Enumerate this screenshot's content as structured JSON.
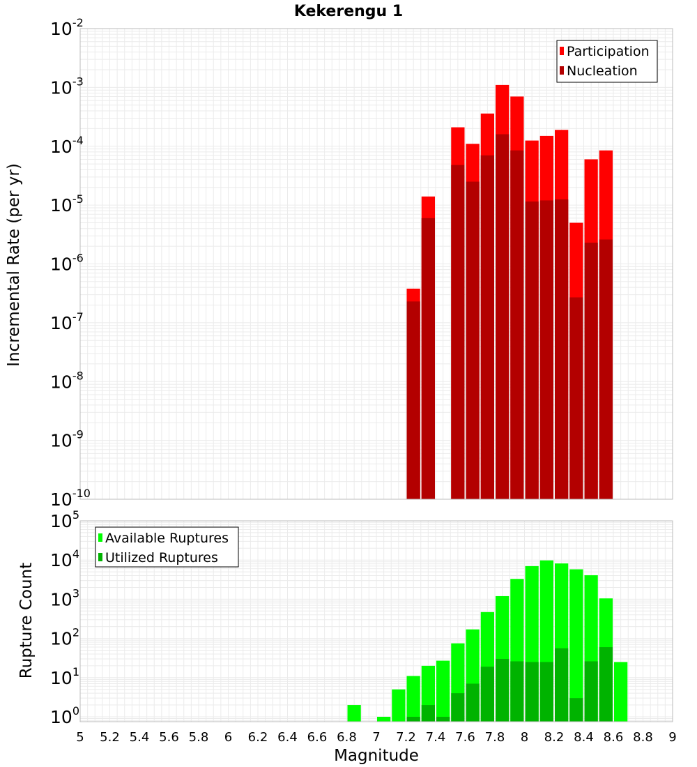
{
  "title": "Kekerengu 1",
  "x_axis": {
    "label": "Magnitude",
    "range": [
      5,
      9
    ],
    "ticks": [
      "5",
      "5.2",
      "5.4",
      "5.6",
      "5.8",
      "6",
      "6.2",
      "6.4",
      "6.6",
      "6.8",
      "7",
      "7.2",
      "7.4",
      "7.6",
      "7.8",
      "8",
      "8.2",
      "8.4",
      "8.6",
      "8.8",
      "9"
    ]
  },
  "colors": {
    "participation": "#ff0000",
    "nucleation": "#b30000",
    "available": "#00ff00",
    "utilized": "#00b300",
    "grid": "#ebebeb",
    "frame": "#bbbbbb"
  },
  "chart_data": [
    {
      "type": "bar",
      "panel": "top",
      "ylabel": "Incremental Rate (per yr)",
      "yscale": "log",
      "ylim": [
        1e-10,
        0.01
      ],
      "y_tick_exponents": [
        -2,
        -3,
        -4,
        -5,
        -6,
        -7,
        -8,
        -9,
        -10
      ],
      "grid": true,
      "legend_position": "top-right",
      "bin_width": 0.1,
      "x": [
        7.25,
        7.35,
        7.55,
        7.65,
        7.75,
        7.85,
        7.95,
        8.05,
        8.15,
        8.25,
        8.35,
        8.45,
        8.55
      ],
      "series": [
        {
          "name": "Participation",
          "values": [
            3.8e-07,
            1.4e-05,
            0.00021,
            0.00011,
            0.00036,
            0.0011,
            0.0007,
            0.000125,
            0.00015,
            0.00019,
            5e-06,
            6e-05,
            8.5e-05
          ]
        },
        {
          "name": "Nucleation",
          "values": [
            2.3e-07,
            6e-06,
            4.8e-05,
            2.5e-05,
            7e-05,
            0.00016,
            8.5e-05,
            1.15e-05,
            1.2e-05,
            1.25e-05,
            2.7e-07,
            2.3e-06,
            2.6e-06
          ]
        }
      ]
    },
    {
      "type": "bar",
      "panel": "bottom",
      "ylabel": "Rupture Count",
      "yscale": "log",
      "ylim": [
        0.75,
        100000.0
      ],
      "y_tick_exponents": [
        0,
        1,
        2,
        3,
        4,
        5
      ],
      "grid": true,
      "legend_position": "top-left",
      "bin_width": 0.1,
      "x": [
        6.85,
        7.05,
        7.15,
        7.25,
        7.35,
        7.45,
        7.55,
        7.65,
        7.75,
        7.85,
        7.95,
        8.05,
        8.15,
        8.25,
        8.35,
        8.45,
        8.55,
        8.65
      ],
      "series": [
        {
          "name": "Available Ruptures",
          "values": [
            2,
            1,
            5,
            11,
            20,
            27,
            75,
            170,
            470,
            1200,
            3300,
            7000,
            9800,
            8200,
            5800,
            4100,
            1050,
            25
          ]
        },
        {
          "name": "Utilized Ruptures",
          "values": [
            0,
            0,
            0,
            1,
            2,
            1,
            4,
            7,
            19,
            30,
            26,
            25,
            25,
            56,
            3,
            26,
            60,
            0
          ]
        }
      ]
    }
  ]
}
